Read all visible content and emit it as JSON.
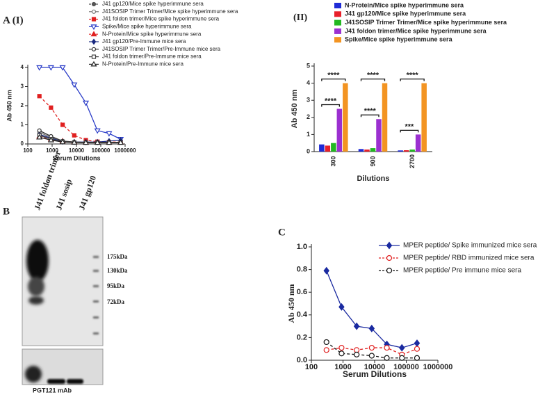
{
  "panels": {
    "a1": "A (I)",
    "a2": "(II)",
    "b": "B",
    "c": "C"
  },
  "blot": {
    "lanes": [
      "J41 foldon trimer",
      "J41 sosip",
      "J41 gp120"
    ],
    "markers": [
      "175kDa",
      "130kDa",
      "95kDa",
      "72kDa"
    ],
    "caption": "PGT121 mAb"
  },
  "chart_data": [
    {
      "type": "line",
      "xscale": "log",
      "x_label": "Serum Dilutions",
      "y_label": "Ab 450 nm",
      "x": [
        300,
        900,
        2700,
        8100,
        24300,
        72900,
        218700,
        656100
      ],
      "xlim": [
        100,
        1000000
      ],
      "xticks": [
        100,
        1000,
        10000,
        100000,
        1000000
      ],
      "ylim": [
        0,
        4
      ],
      "yticks": [
        0,
        1,
        2,
        3,
        4
      ],
      "series": [
        {
          "name": "J41 gp120/Mice spike hyperimmune sera",
          "color": "#555555",
          "marker": "circle",
          "dashed": true,
          "values": [
            0.5,
            0.3,
            0.15,
            0.1,
            0.08,
            0.08,
            0.08,
            0.08
          ]
        },
        {
          "name": "J41SOSIP Trimer Trimer/Mice spike hyperimmune sera",
          "color": "#777777",
          "marker": "circle-open",
          "dashed": false,
          "values": [
            0.6,
            0.35,
            0.15,
            0.1,
            0.08,
            0.08,
            0.08,
            0.08
          ]
        },
        {
          "name": "J41 foldon trimer/Mice spike hyperimmune sera",
          "color": "#e02020",
          "marker": "square",
          "dashed": true,
          "values": [
            2.5,
            1.9,
            1.0,
            0.45,
            0.2,
            0.12,
            0.1,
            0.1
          ]
        },
        {
          "name": "Spike/Mice spike hyperimmune sera",
          "color": "#2a3cc8",
          "marker": "tri-down-open",
          "dashed": false,
          "values": [
            4,
            4,
            4,
            3.1,
            2.15,
            0.7,
            0.55,
            0.25
          ]
        },
        {
          "name": "N-Protein/Mice spike hyperimmune sera",
          "color": "#e02020",
          "marker": "tri",
          "dashed": true,
          "values": [
            0.4,
            0.25,
            0.15,
            0.1,
            0.08,
            0.08,
            0.08,
            0.08
          ]
        },
        {
          "name": "J41 gp120/Pre-Immune mice sera",
          "color": "#1a2a80",
          "marker": "diamond",
          "dashed": false,
          "values": [
            0.5,
            0.3,
            0.12,
            0.1,
            0.1,
            0.1,
            0.15,
            0.2
          ]
        },
        {
          "name": "J41SOSIP Trimer Trimer/Pre-Immune mice sera",
          "color": "#333333",
          "marker": "circle-open",
          "dashed": false,
          "values": [
            0.7,
            0.4,
            0.15,
            0.1,
            0.08,
            0.08,
            0.08,
            0.08
          ]
        },
        {
          "name": "J41 foldon trimer/Pre-Immune mice sera",
          "color": "#444444",
          "marker": "square-open",
          "dashed": false,
          "values": [
            0.45,
            0.25,
            0.12,
            0.08,
            0.07,
            0.07,
            0.07,
            0.07
          ]
        },
        {
          "name": "N-Protein/Pre-Immune mice sera",
          "color": "#222222",
          "marker": "tri-open",
          "dashed": false,
          "values": [
            0.35,
            0.2,
            0.1,
            0.08,
            0.07,
            0.07,
            0.07,
            0.07
          ]
        }
      ]
    },
    {
      "type": "bar",
      "x_label": "Dilutions",
      "y_label": "Ab 450 nm",
      "categories": [
        "300",
        "900",
        "2700"
      ],
      "ylim": [
        0,
        5
      ],
      "yticks": [
        0,
        1,
        2,
        3,
        4,
        5
      ],
      "series": [
        {
          "name": "N-Protein/Mice spike hyperimmune sera",
          "color": "#1f2bd6",
          "values": [
            0.42,
            0.15,
            0.07
          ]
        },
        {
          "name": "J41 gp120/Mice spike hyperimmune sera",
          "color": "#e8202a",
          "values": [
            0.35,
            0.12,
            0.08
          ]
        },
        {
          "name": "J41SOSIP Trimer Trimer/Mice spike hyperimmune sera",
          "color": "#22b822",
          "values": [
            0.5,
            0.2,
            0.12
          ]
        },
        {
          "name": "J41 foldon trimer/Mice spike hyperimmune sera",
          "color": "#9b30d0",
          "values": [
            2.5,
            1.9,
            1.0
          ]
        },
        {
          "name": "Spike/Mice spike hyperimmune sera",
          "color": "#f39422",
          "values": [
            4.0,
            4.0,
            4.0
          ]
        }
      ],
      "annotations": [
        [
          "****",
          "****"
        ],
        [
          "****",
          "****"
        ],
        [
          "****",
          "***"
        ]
      ]
    },
    {
      "type": "line",
      "xscale": "log",
      "x_label": "Serum Dilutions",
      "y_label": "Ab 450 nm",
      "x": [
        300,
        900,
        2700,
        8100,
        24300,
        72900,
        218700
      ],
      "xlim": [
        100,
        1000000
      ],
      "xticks": [
        100,
        1000,
        10000,
        100000,
        1000000
      ],
      "ylim": [
        0,
        1
      ],
      "yticks": [
        {
          "value": 0,
          "label": "0.0"
        },
        0.2,
        0.4,
        0.6,
        0.8,
        {
          "value": 1,
          "label": "1.0"
        }
      ],
      "series": [
        {
          "name": "MPER peptide/ Spike immunized mice sera",
          "color": "#1a2aa0",
          "marker": "diamond",
          "dashed": false,
          "values": [
            0.79,
            0.47,
            0.3,
            0.28,
            0.14,
            0.11,
            0.15
          ]
        },
        {
          "name": "MPER peptide/ RBD immunized mice sera",
          "color": "#e02020",
          "marker": "circle-open",
          "dashed": true,
          "values": [
            0.09,
            0.11,
            0.09,
            0.11,
            0.11,
            0.05,
            0.1
          ]
        },
        {
          "name": "MPER peptide/ Pre immune mice sera",
          "color": "#111111",
          "marker": "circle-open",
          "dashed": true,
          "values": [
            0.16,
            0.06,
            0.05,
            0.04,
            0.02,
            0.02,
            0.02
          ]
        }
      ]
    }
  ]
}
